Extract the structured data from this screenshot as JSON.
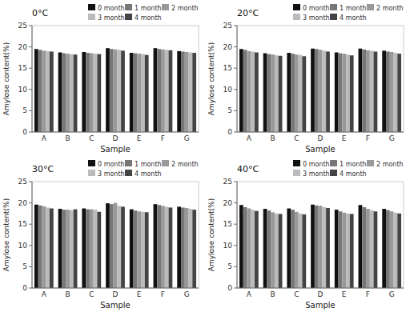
{
  "chart_data": [
    {
      "type": "bar",
      "title": "0°C",
      "xlabel": "Sample",
      "ylabel": "Amylose content(%)",
      "categories": [
        "A",
        "B",
        "C",
        "D",
        "E",
        "F",
        "G"
      ],
      "series": [
        {
          "name": "0 month",
          "color": "#111111",
          "values": [
            19.5,
            18.7,
            18.8,
            19.7,
            18.6,
            19.7,
            19.0
          ]
        },
        {
          "name": "1 month",
          "color": "#777777",
          "values": [
            19.3,
            18.5,
            18.6,
            19.5,
            18.5,
            19.5,
            18.9
          ]
        },
        {
          "name": "2 month",
          "color": "#999999",
          "values": [
            19.1,
            18.4,
            18.5,
            19.4,
            18.4,
            19.4,
            18.8
          ]
        },
        {
          "name": "3 month",
          "color": "#bbbbbb",
          "values": [
            19.0,
            18.3,
            18.4,
            19.3,
            18.3,
            19.3,
            18.7
          ]
        },
        {
          "name": "4 month",
          "color": "#444444",
          "values": [
            18.9,
            18.2,
            18.3,
            19.1,
            18.1,
            19.2,
            18.6
          ]
        }
      ],
      "ylim": [
        0,
        25
      ],
      "yticks": [
        0,
        5,
        10,
        15,
        20,
        25
      ],
      "grid": false,
      "legend": "upper right"
    },
    {
      "type": "bar",
      "title": "20°C",
      "xlabel": "Sample",
      "ylabel": "Amylose content(%)",
      "categories": [
        "A",
        "B",
        "C",
        "D",
        "E",
        "F",
        "G"
      ],
      "series": [
        {
          "name": "0 month",
          "color": "#111111",
          "values": [
            19.5,
            18.5,
            18.6,
            19.6,
            18.7,
            19.6,
            19.1
          ]
        },
        {
          "name": "1 month",
          "color": "#777777",
          "values": [
            19.3,
            18.3,
            18.4,
            19.5,
            18.5,
            19.4,
            18.9
          ]
        },
        {
          "name": "2 month",
          "color": "#999999",
          "values": [
            19.0,
            18.2,
            18.2,
            19.3,
            18.4,
            19.2,
            18.8
          ]
        },
        {
          "name": "3 month",
          "color": "#bbbbbb",
          "values": [
            18.9,
            18.0,
            18.1,
            19.1,
            18.2,
            19.1,
            18.6
          ]
        },
        {
          "name": "4 month",
          "color": "#444444",
          "values": [
            18.7,
            17.9,
            17.8,
            18.9,
            18.0,
            18.9,
            18.4
          ]
        }
      ],
      "ylim": [
        0,
        25
      ],
      "yticks": [
        0,
        5,
        10,
        15,
        20,
        25
      ],
      "grid": false,
      "legend": "upper right"
    },
    {
      "type": "bar",
      "title": "30°C",
      "xlabel": "Sample",
      "ylabel": "Amylose content(%)",
      "categories": [
        "A",
        "B",
        "C",
        "D",
        "E",
        "F",
        "G"
      ],
      "series": [
        {
          "name": "0 month",
          "color": "#111111",
          "values": [
            19.6,
            18.6,
            18.7,
            19.9,
            18.5,
            19.7,
            19.1
          ]
        },
        {
          "name": "1 month",
          "color": "#777777",
          "values": [
            19.4,
            18.4,
            18.5,
            19.7,
            18.2,
            19.5,
            18.9
          ]
        },
        {
          "name": "2 month",
          "color": "#999999",
          "values": [
            19.2,
            18.4,
            18.5,
            20.0,
            18.0,
            19.3,
            18.8
          ]
        },
        {
          "name": "3 month",
          "color": "#bbbbbb",
          "values": [
            18.9,
            18.3,
            18.4,
            19.3,
            17.9,
            19.1,
            18.6
          ]
        },
        {
          "name": "4 month",
          "color": "#444444",
          "values": [
            18.7,
            18.5,
            17.9,
            19.1,
            17.8,
            18.9,
            18.4
          ]
        }
      ],
      "ylim": [
        0,
        25
      ],
      "yticks": [
        0,
        5,
        10,
        15,
        20,
        25
      ],
      "grid": false,
      "legend": "upper right"
    },
    {
      "type": "bar",
      "title": "40°C",
      "xlabel": "Sample",
      "ylabel": "Amylose content(%)",
      "categories": [
        "A",
        "B",
        "C",
        "D",
        "E",
        "F",
        "G"
      ],
      "series": [
        {
          "name": "0 month",
          "color": "#111111",
          "values": [
            19.5,
            18.6,
            18.7,
            19.6,
            18.4,
            19.5,
            18.6
          ]
        },
        {
          "name": "1 month",
          "color": "#777777",
          "values": [
            19.0,
            18.2,
            18.4,
            19.4,
            18.0,
            19.0,
            18.3
          ]
        },
        {
          "name": "2 month",
          "color": "#999999",
          "values": [
            18.7,
            17.8,
            17.9,
            19.3,
            17.7,
            18.6,
            18.0
          ]
        },
        {
          "name": "3 month",
          "color": "#bbbbbb",
          "values": [
            18.4,
            17.5,
            17.5,
            19.0,
            17.5,
            18.3,
            17.7
          ]
        },
        {
          "name": "4 month",
          "color": "#444444",
          "values": [
            18.1,
            17.4,
            17.3,
            18.8,
            17.4,
            18.0,
            17.5
          ]
        }
      ],
      "ylim": [
        0,
        25
      ],
      "yticks": [
        0,
        5,
        10,
        15,
        20,
        25
      ],
      "grid": false,
      "legend": "upper right"
    }
  ]
}
